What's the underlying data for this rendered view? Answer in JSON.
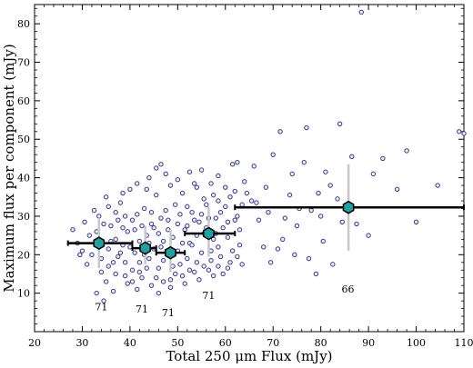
{
  "chart_data": {
    "type": "scatter",
    "xlabel": "Total 250 μm Flux (mJy)",
    "ylabel": "Maximum flux per component (mJy)",
    "xlim": [
      20,
      110
    ],
    "ylim": [
      0,
      85
    ],
    "xticks": [
      20,
      30,
      40,
      50,
      60,
      70,
      80,
      90,
      100,
      110
    ],
    "yticks": [
      10,
      20,
      30,
      40,
      50,
      60,
      70,
      80
    ],
    "xtick_labels": [
      "20",
      "30",
      "40",
      "50",
      "60",
      "70",
      "80",
      "90",
      "100",
      "110"
    ],
    "ytick_labels": [
      "10",
      "20",
      "30",
      "40",
      "50",
      "60",
      "70",
      "80"
    ],
    "grid": false,
    "colors": {
      "scatter_edge": "#3a3a8c",
      "scatter_fill": "#e8ecff",
      "bin_marker": "#20a0a0",
      "error_bar": "#c8c8c8"
    },
    "binned": [
      {
        "x": 33.5,
        "y": 23.0,
        "xerr": [
          27.0,
          40.5
        ],
        "yerr": [
          16.5,
          29.5
        ],
        "n": "71"
      },
      {
        "x": 43.2,
        "y": 21.7,
        "xerr": [
          40.5,
          45.5
        ],
        "yerr": [
          17.5,
          27.5
        ],
        "n": "71"
      },
      {
        "x": 48.5,
        "y": 20.5,
        "xerr": [
          45.5,
          51.5
        ],
        "yerr": [
          15.5,
          26.5
        ],
        "n": "71"
      },
      {
        "x": 56.5,
        "y": 25.5,
        "xerr": [
          51.5,
          62.0
        ],
        "yerr": [
          19.5,
          32.5
        ],
        "n": "71"
      },
      {
        "x": 85.8,
        "y": 32.3,
        "xerr": [
          62.0,
          110.0
        ],
        "yerr": [
          21.0,
          43.5
        ],
        "n": "66"
      }
    ],
    "count_labels": [
      {
        "x": 34.0,
        "y": 5.5,
        "text": "71"
      },
      {
        "x": 42.5,
        "y": 5.0,
        "text": "71"
      },
      {
        "x": 48.0,
        "y": 4.0,
        "text": "71"
      },
      {
        "x": 56.5,
        "y": 8.5,
        "text": "71"
      },
      {
        "x": 85.7,
        "y": 10.2,
        "text": "66"
      }
    ],
    "points": [
      [
        33.0,
        10.0
      ],
      [
        34.5,
        8.0
      ],
      [
        30.0,
        21.0
      ],
      [
        31.5,
        25.0
      ],
      [
        29.0,
        23.0
      ],
      [
        32.0,
        20.0
      ],
      [
        35.5,
        21.5
      ],
      [
        37.0,
        24.0
      ],
      [
        36.0,
        27.5
      ],
      [
        38.5,
        22.5
      ],
      [
        39.0,
        18.0
      ],
      [
        40.5,
        16.0
      ],
      [
        41.0,
        20.5
      ],
      [
        42.0,
        23.5
      ],
      [
        43.5,
        25.0
      ],
      [
        44.0,
        19.0
      ],
      [
        45.0,
        27.0
      ],
      [
        46.5,
        22.0
      ],
      [
        47.0,
        18.5
      ],
      [
        48.0,
        29.0
      ],
      [
        49.0,
        24.5
      ],
      [
        50.0,
        21.0
      ],
      [
        51.5,
        26.5
      ],
      [
        52.5,
        23.0
      ],
      [
        53.0,
        31.0
      ],
      [
        54.5,
        28.5
      ],
      [
        55.0,
        20.5
      ],
      [
        56.0,
        33.0
      ],
      [
        57.5,
        24.0
      ],
      [
        58.0,
        29.5
      ],
      [
        59.5,
        27.0
      ],
      [
        60.0,
        32.5
      ],
      [
        61.0,
        35.0
      ],
      [
        62.5,
        30.0
      ],
      [
        63.0,
        26.5
      ],
      [
        64.0,
        39.0
      ],
      [
        65.5,
        34.0
      ],
      [
        66.0,
        43.0
      ],
      [
        67.0,
        29.0
      ],
      [
        68.5,
        37.5
      ],
      [
        69.0,
        31.0
      ],
      [
        70.0,
        46.0
      ],
      [
        71.5,
        52.0
      ],
      [
        72.0,
        24.0
      ],
      [
        73.5,
        35.5
      ],
      [
        74.0,
        41.0
      ],
      [
        75.0,
        27.5
      ],
      [
        76.5,
        44.0
      ],
      [
        77.0,
        53.0
      ],
      [
        78.0,
        31.5
      ],
      [
        79.5,
        36.0
      ],
      [
        80.0,
        30.0
      ],
      [
        81.0,
        41.5
      ],
      [
        82.0,
        38.0
      ],
      [
        83.5,
        34.5
      ],
      [
        84.0,
        54.0
      ],
      [
        86.5,
        45.5
      ],
      [
        87.5,
        28.0
      ],
      [
        88.5,
        83.0
      ],
      [
        90.0,
        25.0
      ],
      [
        91.0,
        41.0
      ],
      [
        93.0,
        45.0
      ],
      [
        96.0,
        37.0
      ],
      [
        98.0,
        47.0
      ],
      [
        100.0,
        28.5
      ],
      [
        104.5,
        38.0
      ],
      [
        109.0,
        52.0
      ],
      [
        110.0,
        51.5
      ],
      [
        33.5,
        30.0
      ],
      [
        35.0,
        35.0
      ],
      [
        36.5,
        18.0
      ],
      [
        37.5,
        29.0
      ],
      [
        38.0,
        33.5
      ],
      [
        39.5,
        26.0
      ],
      [
        40.0,
        37.0
      ],
      [
        41.5,
        30.5
      ],
      [
        42.5,
        14.0
      ],
      [
        43.0,
        32.0
      ],
      [
        44.5,
        28.0
      ],
      [
        45.5,
        35.5
      ],
      [
        46.0,
        16.5
      ],
      [
        47.5,
        31.5
      ],
      [
        48.5,
        13.5
      ],
      [
        49.5,
        33.0
      ],
      [
        50.5,
        17.5
      ],
      [
        51.0,
        36.0
      ],
      [
        52.0,
        19.0
      ],
      [
        53.5,
        15.5
      ],
      [
        54.0,
        37.5
      ],
      [
        55.5,
        25.5
      ],
      [
        56.5,
        16.0
      ],
      [
        57.0,
        38.5
      ],
      [
        58.5,
        22.0
      ],
      [
        59.0,
        19.5
      ],
      [
        60.5,
        24.5
      ],
      [
        61.5,
        21.0
      ],
      [
        62.0,
        36.5
      ],
      [
        63.5,
        33.0
      ],
      [
        28.0,
        26.5
      ],
      [
        29.5,
        20.0
      ],
      [
        31.0,
        17.5
      ],
      [
        32.5,
        31.5
      ],
      [
        34.0,
        19.0
      ],
      [
        35.0,
        13.0
      ],
      [
        36.0,
        23.5
      ],
      [
        37.0,
        15.0
      ],
      [
        38.0,
        20.5
      ],
      [
        39.0,
        30.0
      ],
      [
        40.0,
        22.0
      ],
      [
        41.0,
        26.5
      ],
      [
        42.0,
        18.0
      ],
      [
        43.0,
        20.0
      ],
      [
        44.0,
        23.0
      ],
      [
        45.0,
        21.5
      ],
      [
        46.0,
        25.5
      ],
      [
        47.0,
        23.5
      ],
      [
        48.0,
        20.0
      ],
      [
        49.0,
        17.0
      ],
      [
        50.0,
        28.0
      ],
      [
        51.0,
        23.0
      ],
      [
        52.0,
        27.5
      ],
      [
        53.0,
        22.5
      ],
      [
        54.0,
        25.0
      ],
      [
        55.0,
        30.5
      ],
      [
        56.0,
        27.0
      ],
      [
        57.0,
        21.0
      ],
      [
        58.0,
        25.5
      ],
      [
        59.0,
        31.0
      ],
      [
        44.0,
        40.0
      ],
      [
        45.5,
        42.5
      ],
      [
        47.5,
        41.0
      ],
      [
        46.5,
        43.5
      ],
      [
        50.0,
        39.5
      ],
      [
        52.5,
        41.5
      ],
      [
        55.0,
        42.0
      ],
      [
        58.5,
        40.5
      ],
      [
        61.5,
        43.5
      ],
      [
        62.5,
        44.0
      ],
      [
        38.5,
        36.0
      ],
      [
        41.5,
        38.5
      ],
      [
        43.5,
        37.0
      ],
      [
        48.5,
        38.0
      ],
      [
        53.5,
        38.5
      ],
      [
        57.5,
        35.5
      ],
      [
        60.0,
        37.5
      ],
      [
        64.5,
        36.0
      ],
      [
        66.5,
        33.5
      ],
      [
        68.0,
        22.0
      ],
      [
        69.5,
        18.0
      ],
      [
        71.0,
        21.5
      ],
      [
        72.5,
        29.5
      ],
      [
        74.5,
        20.0
      ],
      [
        75.5,
        32.0
      ],
      [
        77.5,
        19.0
      ],
      [
        79.0,
        15.0
      ],
      [
        80.5,
        23.5
      ],
      [
        82.5,
        17.5
      ],
      [
        84.5,
        28.5
      ],
      [
        36.5,
        10.5
      ],
      [
        39.5,
        12.5
      ],
      [
        41.5,
        11.0
      ],
      [
        44.5,
        12.0
      ],
      [
        46.0,
        10.0
      ],
      [
        48.5,
        11.5
      ],
      [
        51.5,
        12.5
      ],
      [
        54.5,
        13.5
      ],
      [
        57.5,
        14.5
      ],
      [
        60.5,
        16.5
      ],
      [
        30.5,
        28.5
      ],
      [
        33.0,
        26.0
      ],
      [
        34.5,
        28.0
      ],
      [
        35.5,
        32.5
      ],
      [
        37.0,
        31.0
      ],
      [
        38.5,
        27.0
      ],
      [
        40.5,
        29.0
      ],
      [
        42.5,
        27.5
      ],
      [
        44.5,
        31.0
      ],
      [
        46.5,
        29.5
      ],
      [
        48.0,
        26.5
      ],
      [
        50.5,
        30.5
      ],
      [
        52.0,
        32.5
      ],
      [
        53.5,
        29.0
      ],
      [
        55.5,
        34.5
      ],
      [
        56.5,
        29.5
      ],
      [
        58.5,
        34.0
      ],
      [
        60.5,
        28.5
      ],
      [
        62.0,
        29.0
      ],
      [
        63.0,
        22.5
      ],
      [
        34.0,
        15.5
      ],
      [
        35.5,
        17.0
      ],
      [
        37.5,
        19.5
      ],
      [
        39.0,
        14.5
      ],
      [
        40.5,
        13.0
      ],
      [
        42.0,
        15.5
      ],
      [
        43.5,
        16.5
      ],
      [
        45.5,
        14.0
      ],
      [
        47.0,
        13.0
      ],
      [
        49.5,
        15.0
      ],
      [
        51.0,
        14.5
      ],
      [
        52.5,
        16.0
      ],
      [
        54.0,
        18.0
      ],
      [
        55.5,
        17.0
      ],
      [
        57.0,
        18.5
      ],
      [
        58.5,
        17.0
      ],
      [
        59.5,
        15.0
      ],
      [
        61.0,
        18.0
      ],
      [
        62.5,
        19.5
      ],
      [
        63.5,
        17.5
      ]
    ]
  }
}
